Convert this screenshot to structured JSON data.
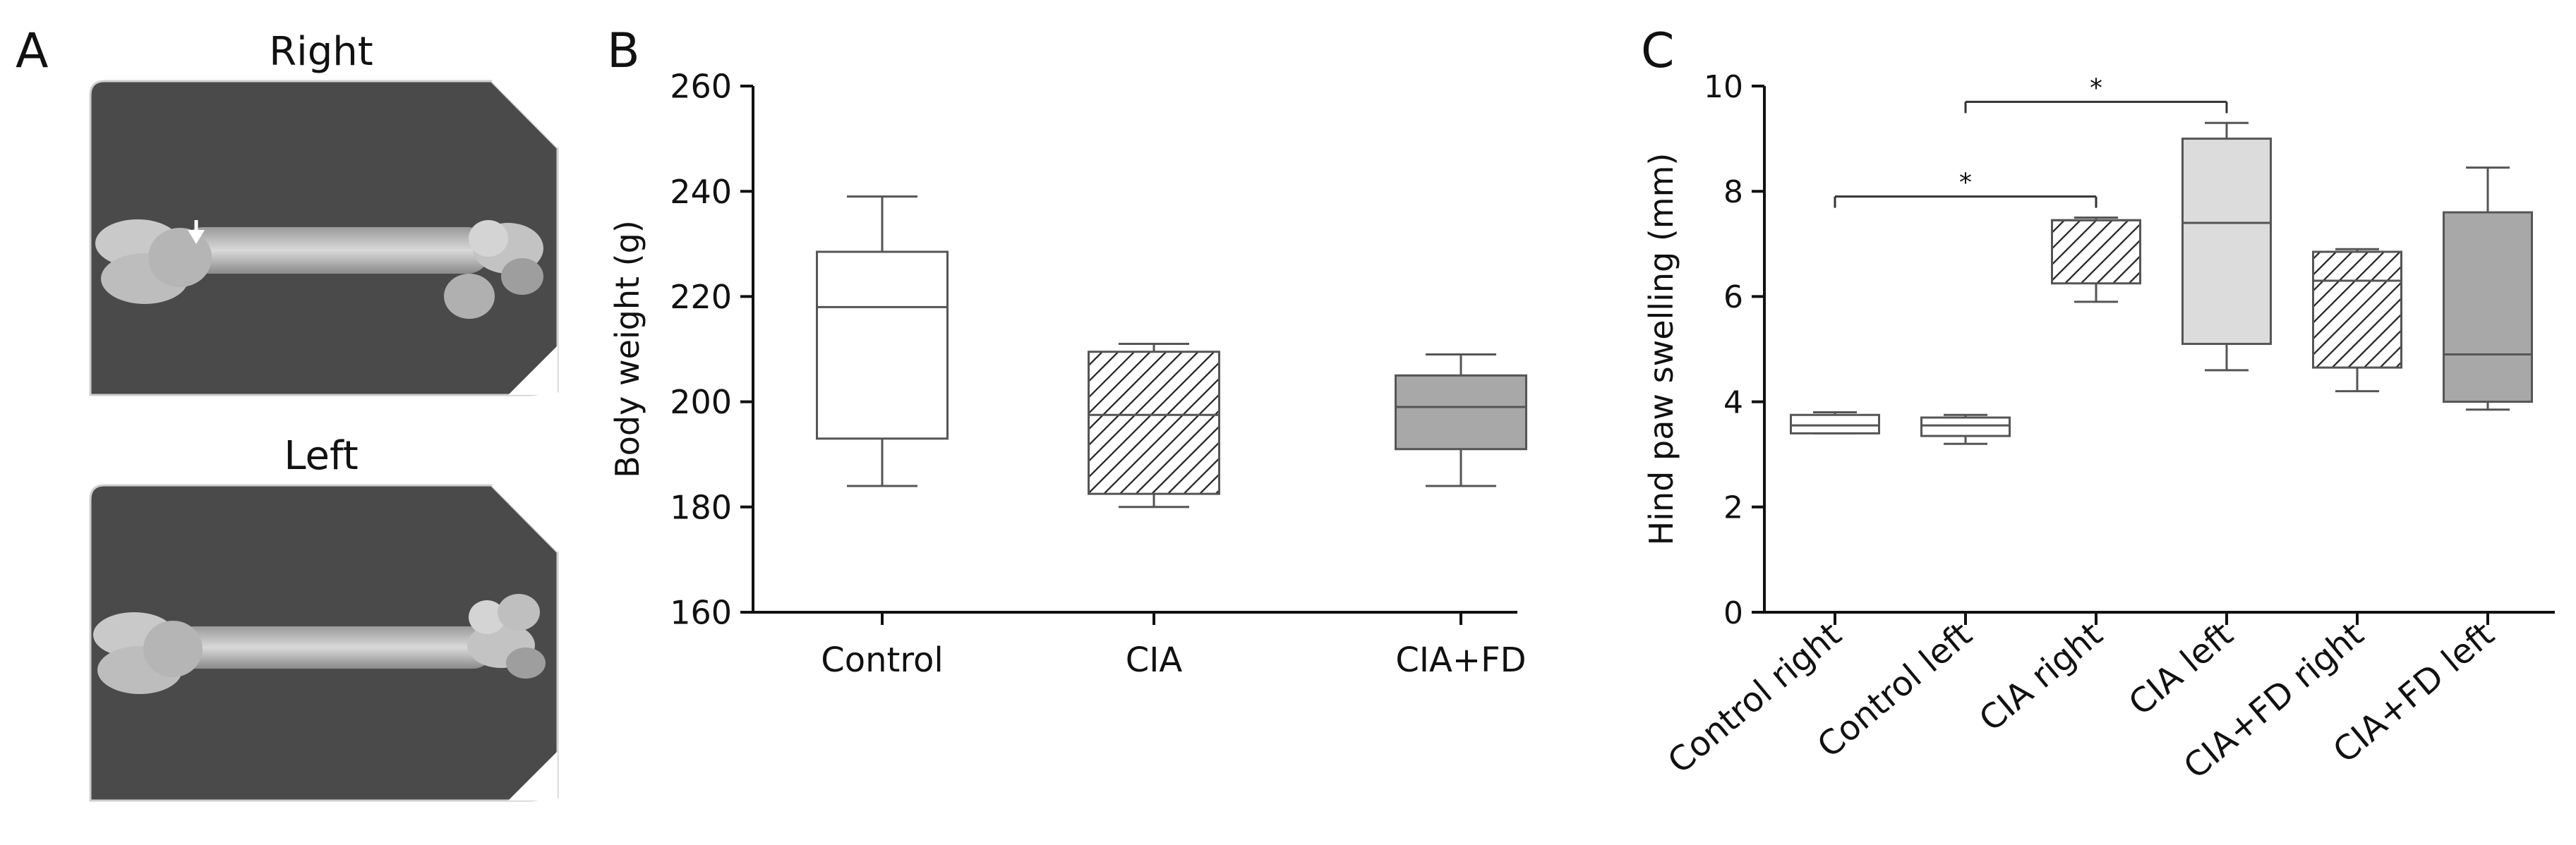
{
  "panels": {
    "A": {
      "letter": "A",
      "right_label": "Right",
      "left_label": "Left",
      "image_right": "femur-xray-right",
      "image_left": "femur-xray-left"
    }
  },
  "chart_data": [
    {
      "panel": "B",
      "type": "box",
      "title": "",
      "xlabel": "",
      "ylabel": "Body weight (g)",
      "ylim": [
        160,
        260
      ],
      "yticks": [
        160,
        180,
        200,
        220,
        240,
        260
      ],
      "categories": [
        "Control",
        "CIA",
        "CIA+FD"
      ],
      "boxes": [
        {
          "min": 184,
          "q1": 193,
          "median": 218,
          "q3": 228.5,
          "max": 239,
          "fill": "white"
        },
        {
          "min": 180,
          "q1": 182.5,
          "median": 197.5,
          "q3": 209.5,
          "max": 211,
          "fill": "hatch"
        },
        {
          "min": 184,
          "q1": 191,
          "median": 199,
          "q3": 205,
          "max": 209,
          "fill": "#a8a8a8"
        }
      ]
    },
    {
      "panel": "C",
      "type": "box",
      "title": "",
      "xlabel": "",
      "ylabel": "Hind paw swelling (mm)",
      "ylim": [
        0,
        10
      ],
      "yticks": [
        0,
        2,
        4,
        6,
        8,
        10
      ],
      "categories": [
        "Control right",
        "Control left",
        "CIA right",
        "CIA left",
        "CIA+FD right",
        "CIA+FD left"
      ],
      "boxes": [
        {
          "min": 3.4,
          "q1": 3.4,
          "median": 3.55,
          "q3": 3.75,
          "max": 3.8,
          "fill": "white"
        },
        {
          "min": 3.2,
          "q1": 3.35,
          "median": 3.55,
          "q3": 3.7,
          "max": 3.75,
          "fill": "white"
        },
        {
          "min": 5.9,
          "q1": 6.25,
          "median": 7.45,
          "q3": 7.45,
          "max": 7.5,
          "fill": "hatch"
        },
        {
          "min": 4.6,
          "q1": 5.1,
          "median": 7.4,
          "q3": 9.0,
          "max": 9.3,
          "fill": "#dcdcdc"
        },
        {
          "min": 4.2,
          "q1": 4.65,
          "median": 6.3,
          "q3": 6.85,
          "max": 6.9,
          "fill": "hatch"
        },
        {
          "min": 3.85,
          "q1": 4.0,
          "median": 4.9,
          "q3": 7.6,
          "max": 8.45,
          "fill": "#a8a8a8"
        }
      ],
      "significance": [
        {
          "from": 0,
          "to": 2,
          "y": 7.9,
          "label": "*"
        },
        {
          "from": 1,
          "to": 3,
          "y": 9.7,
          "label": "*"
        }
      ]
    }
  ]
}
